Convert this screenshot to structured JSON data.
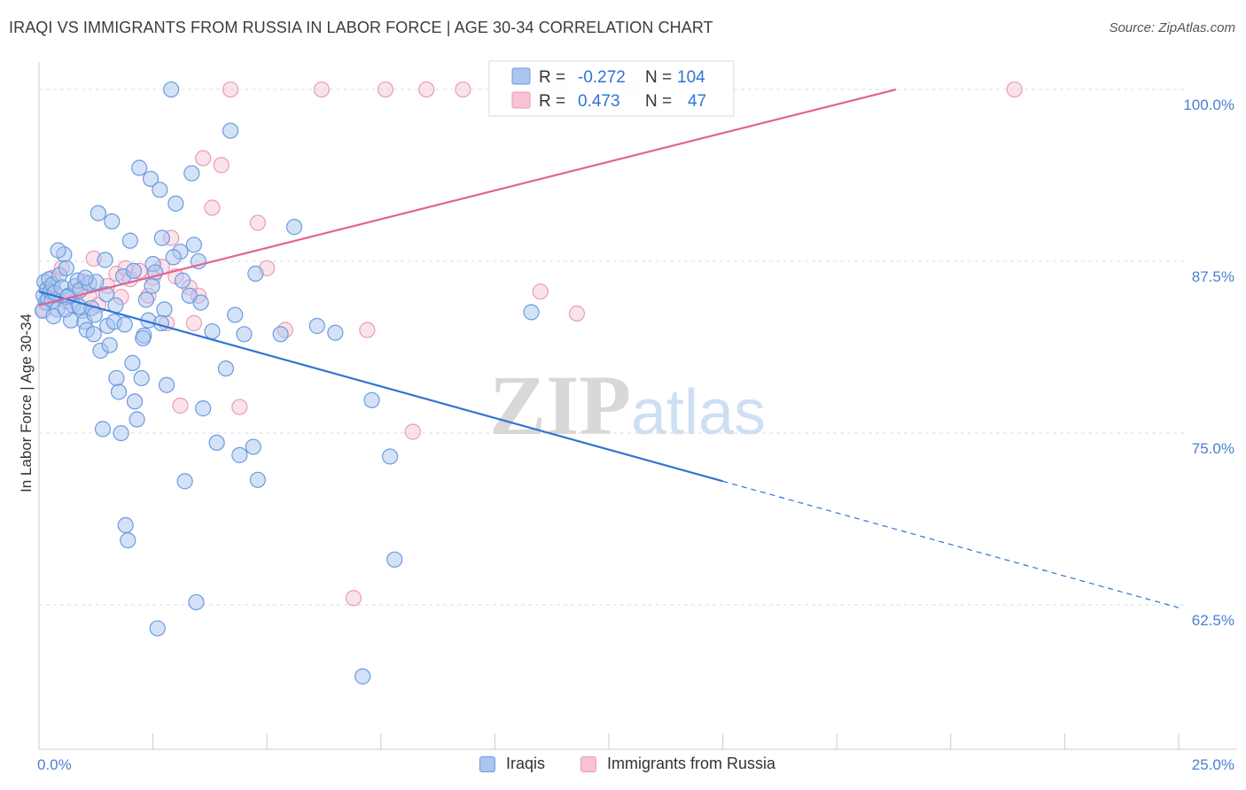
{
  "title": "IRAQI VS IMMIGRANTS FROM RUSSIA IN LABOR FORCE | AGE 30-34 CORRELATION CHART",
  "source": "Source: ZipAtlas.com",
  "watermark": {
    "zip": "ZIP",
    "atlas": "atlas"
  },
  "legend_box": [
    {
      "r_label": "R =",
      "r_value": "-0.272",
      "n_label": "N =",
      "n_value": "104"
    },
    {
      "r_label": "R =",
      "r_value": "0.473",
      "n_label": "N =",
      "n_value": "47"
    }
  ],
  "bottom_legend": [
    "Iraqis",
    "Immigrants from Russia"
  ],
  "colors": {
    "iraqis_fill": "#a9c6ef",
    "iraqis_stroke": "#6b9be0",
    "iraqis_line": "#2e74d4",
    "russia_fill": "#f7c2d3",
    "russia_stroke": "#ec9ab6",
    "russia_line": "#e2648f",
    "axis_text": "#4a7fd1",
    "grid": "#dcdcdc"
  },
  "chart_data": {
    "type": "scatter",
    "title": "IRAQI VS IMMIGRANTS FROM RUSSIA IN LABOR FORCE | AGE 30-34 CORRELATION CHART",
    "xlabel": "",
    "ylabel": "In Labor Force | Age 30-34",
    "xlim": [
      0,
      25
    ],
    "ylim": [
      52,
      102
    ],
    "x_tick_labels": [
      "0.0%",
      "25.0%"
    ],
    "x_tick_values": [
      0,
      25
    ],
    "y_tick_labels": [
      "100.0%",
      "87.5%",
      "75.0%",
      "62.5%"
    ],
    "y_tick_values": [
      100,
      87.5,
      75,
      62.5
    ],
    "grid": true,
    "legend_position": "top-center",
    "series": [
      {
        "name": "Iraqis",
        "r": -0.272,
        "n": 104,
        "trend": {
          "x0": 0,
          "y0": 85.3,
          "x1": 15,
          "y1": 71.5,
          "dashed_to_x": 25,
          "dashed_to_y": 62.3
        },
        "points": [
          [
            0.1,
            85.0
          ],
          [
            0.12,
            86.0
          ],
          [
            0.15,
            84.5
          ],
          [
            0.18,
            85.5
          ],
          [
            0.2,
            84.8
          ],
          [
            0.22,
            86.2
          ],
          [
            0.25,
            85.3
          ],
          [
            0.28,
            84.6
          ],
          [
            0.3,
            85.8
          ],
          [
            0.35,
            85.2
          ],
          [
            0.4,
            84.0
          ],
          [
            0.45,
            86.5
          ],
          [
            0.5,
            85.6
          ],
          [
            0.55,
            88.0
          ],
          [
            0.6,
            87.0
          ],
          [
            0.65,
            85.0
          ],
          [
            0.7,
            83.2
          ],
          [
            0.75,
            84.3
          ],
          [
            0.8,
            85.7
          ],
          [
            0.85,
            86.1
          ],
          [
            0.9,
            85.4
          ],
          [
            0.95,
            83.9
          ],
          [
            1.0,
            83.1
          ],
          [
            1.05,
            82.5
          ],
          [
            1.1,
            85.9
          ],
          [
            1.15,
            84.1
          ],
          [
            1.2,
            82.2
          ],
          [
            1.25,
            86.0
          ],
          [
            1.3,
            91.0
          ],
          [
            1.35,
            81.0
          ],
          [
            1.4,
            75.3
          ],
          [
            1.45,
            87.6
          ],
          [
            1.5,
            82.8
          ],
          [
            1.55,
            81.4
          ],
          [
            1.6,
            90.4
          ],
          [
            1.65,
            83.1
          ],
          [
            1.7,
            79.0
          ],
          [
            1.75,
            78.0
          ],
          [
            1.8,
            75.0
          ],
          [
            1.85,
            86.4
          ],
          [
            1.9,
            68.3
          ],
          [
            1.95,
            67.2
          ],
          [
            2.0,
            89.0
          ],
          [
            2.05,
            80.1
          ],
          [
            2.1,
            77.3
          ],
          [
            2.15,
            76.0
          ],
          [
            2.2,
            94.3
          ],
          [
            2.25,
            79.0
          ],
          [
            2.3,
            82.1
          ],
          [
            2.35,
            84.7
          ],
          [
            2.4,
            83.2
          ],
          [
            2.45,
            93.5
          ],
          [
            2.5,
            87.3
          ],
          [
            2.55,
            86.7
          ],
          [
            2.6,
            60.8
          ],
          [
            2.65,
            92.7
          ],
          [
            2.7,
            89.2
          ],
          [
            2.75,
            84.0
          ],
          [
            2.8,
            78.5
          ],
          [
            2.9,
            100.0
          ],
          [
            3.0,
            91.7
          ],
          [
            3.1,
            88.2
          ],
          [
            3.2,
            71.5
          ],
          [
            3.3,
            85.0
          ],
          [
            3.35,
            93.9
          ],
          [
            3.4,
            88.7
          ],
          [
            3.45,
            62.7
          ],
          [
            3.5,
            87.5
          ],
          [
            3.6,
            76.8
          ],
          [
            3.8,
            82.4
          ],
          [
            3.9,
            74.3
          ],
          [
            4.1,
            79.7
          ],
          [
            4.2,
            97.0
          ],
          [
            4.3,
            83.6
          ],
          [
            4.4,
            73.4
          ],
          [
            4.5,
            82.2
          ],
          [
            4.7,
            74.0
          ],
          [
            4.8,
            71.6
          ],
          [
            5.3,
            82.2
          ],
          [
            5.6,
            90.0
          ],
          [
            6.1,
            82.8
          ],
          [
            6.5,
            82.3
          ],
          [
            7.1,
            57.3
          ],
          [
            7.3,
            77.4
          ],
          [
            7.7,
            73.3
          ],
          [
            7.8,
            65.8
          ],
          [
            10.8,
            83.8
          ],
          [
            0.08,
            83.9
          ],
          [
            0.42,
            88.3
          ],
          [
            0.62,
            84.9
          ],
          [
            0.88,
            84.2
          ],
          [
            1.02,
            86.3
          ],
          [
            1.22,
            83.6
          ],
          [
            1.48,
            85.1
          ],
          [
            1.68,
            84.3
          ],
          [
            1.88,
            82.9
          ],
          [
            2.08,
            86.8
          ],
          [
            2.28,
            81.9
          ],
          [
            2.48,
            85.7
          ],
          [
            2.68,
            83.0
          ],
          [
            3.15,
            86.1
          ],
          [
            3.55,
            84.5
          ],
          [
            4.75,
            86.6
          ],
          [
            0.32,
            83.5
          ],
          [
            0.58,
            84.0
          ],
          [
            2.95,
            87.8
          ]
        ]
      },
      {
        "name": "Immigrants from Russia",
        "r": 0.473,
        "n": 47,
        "trend": {
          "x0": 0,
          "y0": 84.3,
          "x1": 18.8,
          "y1": 100.0
        },
        "points": [
          [
            0.1,
            84.0
          ],
          [
            0.2,
            85.5
          ],
          [
            0.3,
            86.3
          ],
          [
            0.4,
            85.0
          ],
          [
            0.5,
            87.0
          ],
          [
            0.6,
            84.6
          ],
          [
            0.8,
            85.3
          ],
          [
            1.0,
            86.0
          ],
          [
            1.1,
            85.0
          ],
          [
            1.2,
            87.7
          ],
          [
            1.3,
            84.3
          ],
          [
            1.5,
            85.7
          ],
          [
            1.7,
            86.6
          ],
          [
            1.8,
            84.9
          ],
          [
            1.9,
            87.0
          ],
          [
            2.0,
            86.2
          ],
          [
            2.2,
            86.8
          ],
          [
            2.4,
            85.0
          ],
          [
            2.5,
            86.3
          ],
          [
            2.7,
            87.1
          ],
          [
            2.8,
            83.0
          ],
          [
            2.9,
            89.2
          ],
          [
            3.0,
            86.4
          ],
          [
            3.1,
            77.0
          ],
          [
            3.3,
            85.6
          ],
          [
            3.4,
            83.0
          ],
          [
            3.5,
            85.0
          ],
          [
            3.6,
            95.0
          ],
          [
            3.8,
            91.4
          ],
          [
            4.0,
            94.5
          ],
          [
            4.2,
            100.0
          ],
          [
            4.4,
            76.9
          ],
          [
            4.8,
            90.3
          ],
          [
            5.0,
            87.0
          ],
          [
            5.4,
            82.5
          ],
          [
            6.2,
            100.0
          ],
          [
            7.2,
            82.5
          ],
          [
            7.6,
            100.0
          ],
          [
            8.2,
            75.1
          ],
          [
            8.5,
            100.0
          ],
          [
            9.3,
            100.0
          ],
          [
            11.0,
            85.3
          ],
          [
            11.4,
            100.0
          ],
          [
            11.8,
            83.7
          ],
          [
            13.0,
            100.0
          ],
          [
            21.4,
            100.0
          ],
          [
            6.9,
            63.0
          ]
        ]
      }
    ]
  }
}
